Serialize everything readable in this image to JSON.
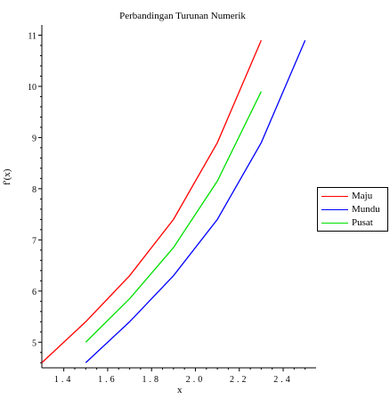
{
  "chart_data": {
    "type": "line",
    "title": "Perbandingan Turunan Numerik",
    "xlabel": "x",
    "ylabel": "f'(x)",
    "xlim": [
      1.3,
      2.55
    ],
    "ylim": [
      4.5,
      11.2
    ],
    "x_ticks": [
      "1.4",
      "1.6",
      "1.8",
      "2.0",
      "2.2",
      "2.4"
    ],
    "y_ticks": [
      "5",
      "6",
      "7",
      "8",
      "9",
      "10",
      "11"
    ],
    "series": [
      {
        "name": "Maju",
        "color": "#ff0000",
        "x": [
          1.3,
          1.5,
          1.7,
          1.9,
          2.1,
          2.3
        ],
        "y": [
          4.6,
          5.4,
          6.3,
          7.4,
          8.9,
          10.9
        ]
      },
      {
        "name": "Mundu",
        "color": "#0000ff",
        "x": [
          1.5,
          1.7,
          1.9,
          2.1,
          2.3,
          2.5
        ],
        "y": [
          4.6,
          5.4,
          6.3,
          7.4,
          8.9,
          10.9
        ]
      },
      {
        "name": "Pusat",
        "color": "#00e000",
        "x": [
          1.5,
          1.7,
          1.9,
          2.1,
          2.3
        ],
        "y": [
          5.0,
          5.85,
          6.85,
          8.15,
          9.9
        ]
      }
    ],
    "legend_position": "right",
    "grid": false
  }
}
